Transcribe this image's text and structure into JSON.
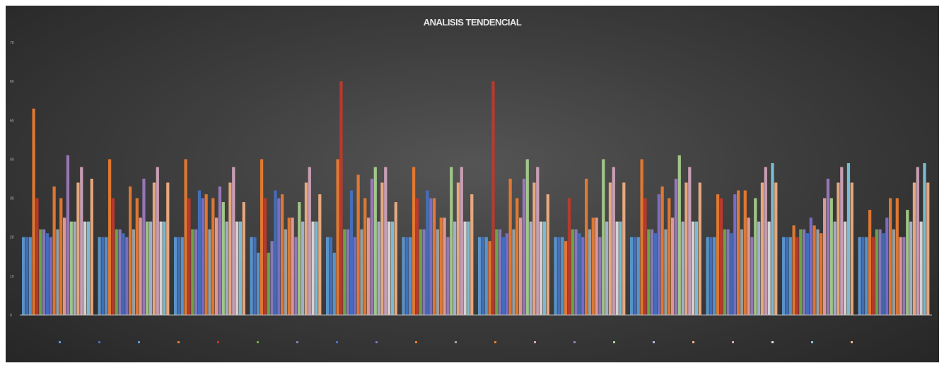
{
  "chart_data": {
    "type": "bar",
    "title": "ANALISIS TENDENCIAL",
    "xlabel": "",
    "ylabel": "",
    "ylim": [
      0,
      70
    ],
    "y_ticks": [
      0,
      10,
      20,
      30,
      40,
      50,
      60,
      70
    ],
    "grid": false,
    "legend_position": "bottom",
    "categories": [
      "",
      "",
      "",
      "",
      "",
      "",
      "",
      "",
      "",
      "",
      "",
      ""
    ],
    "series": [
      {
        "color": "#5b9bd5",
        "values": [
          20,
          20,
          20,
          20,
          20,
          20,
          20,
          20,
          20,
          20,
          20,
          20
        ]
      },
      {
        "color": "#4472c4",
        "values": [
          20,
          20,
          20,
          20,
          20,
          20,
          20,
          20,
          20,
          20,
          20,
          20
        ]
      },
      {
        "color": "#5b9bd5",
        "values": [
          20,
          20,
          20,
          16,
          16,
          20,
          20,
          20,
          20,
          20,
          20,
          20
        ]
      },
      {
        "color": "#ed7d31",
        "values": [
          53,
          40,
          40,
          40,
          40,
          38,
          19,
          19,
          40,
          31,
          23,
          27
        ]
      },
      {
        "color": "#c0392b",
        "values": [
          30,
          30,
          30,
          30,
          60,
          30,
          60,
          30,
          30,
          30,
          20,
          20
        ]
      },
      {
        "color": "#70ad47",
        "values": [
          22,
          22,
          22,
          16,
          22,
          22,
          22,
          22,
          22,
          22,
          22,
          22
        ]
      },
      {
        "color": "#8e7cc3",
        "values": [
          22,
          22,
          22,
          19,
          22,
          22,
          22,
          22,
          22,
          22,
          22,
          22
        ]
      },
      {
        "color": "#4472c4",
        "values": [
          21,
          21,
          32,
          32,
          32,
          32,
          20,
          21,
          21,
          21,
          21,
          21
        ]
      },
      {
        "color": "#7f6fd1",
        "values": [
          20,
          20,
          30,
          30,
          20,
          30,
          21,
          20,
          31,
          31,
          25,
          25
        ]
      },
      {
        "color": "#ed7d31",
        "values": [
          33,
          33,
          31,
          31,
          36,
          30,
          35,
          35,
          33,
          32,
          23,
          30
        ]
      },
      {
        "color": "#a5a5a5",
        "values": [
          22,
          22,
          22,
          22,
          22,
          22,
          22,
          22,
          22,
          22,
          22,
          22
        ]
      },
      {
        "color": "#ed7d31",
        "values": [
          30,
          30,
          30,
          25,
          30,
          25,
          30,
          25,
          30,
          32,
          21,
          30
        ]
      },
      {
        "color": "#e8a0a0",
        "values": [
          25,
          25,
          25,
          25,
          25,
          25,
          25,
          25,
          25,
          25,
          30,
          20
        ]
      },
      {
        "color": "#9e7cc1",
        "values": [
          41,
          35,
          33,
          20,
          35,
          20,
          35,
          20,
          35,
          20,
          35,
          20
        ]
      },
      {
        "color": "#a9d18e",
        "values": [
          24,
          24,
          29,
          29,
          38,
          38,
          40,
          40,
          41,
          30,
          30,
          27
        ]
      },
      {
        "color": "#aab7d6",
        "values": [
          24,
          24,
          24,
          24,
          24,
          24,
          24,
          24,
          24,
          24,
          24,
          24
        ]
      },
      {
        "color": "#f4b183",
        "values": [
          34,
          34,
          34,
          34,
          34,
          34,
          34,
          34,
          34,
          34,
          34,
          34
        ]
      },
      {
        "color": "#d5a6bd",
        "values": [
          38,
          38,
          38,
          38,
          38,
          38,
          38,
          38,
          38,
          38,
          38,
          38
        ]
      },
      {
        "color": "#e0e0e0",
        "values": [
          24,
          24,
          24,
          24,
          24,
          24,
          24,
          24,
          24,
          24,
          24,
          24
        ]
      },
      {
        "color": "#7fc7e0",
        "values": [
          24,
          24,
          24,
          24,
          24,
          24,
          24,
          24,
          24,
          39,
          39,
          39
        ]
      },
      {
        "color": "#f4b183",
        "values": [
          35,
          34,
          29,
          31,
          29,
          31,
          31,
          34,
          34,
          34,
          34,
          34
        ]
      }
    ]
  }
}
